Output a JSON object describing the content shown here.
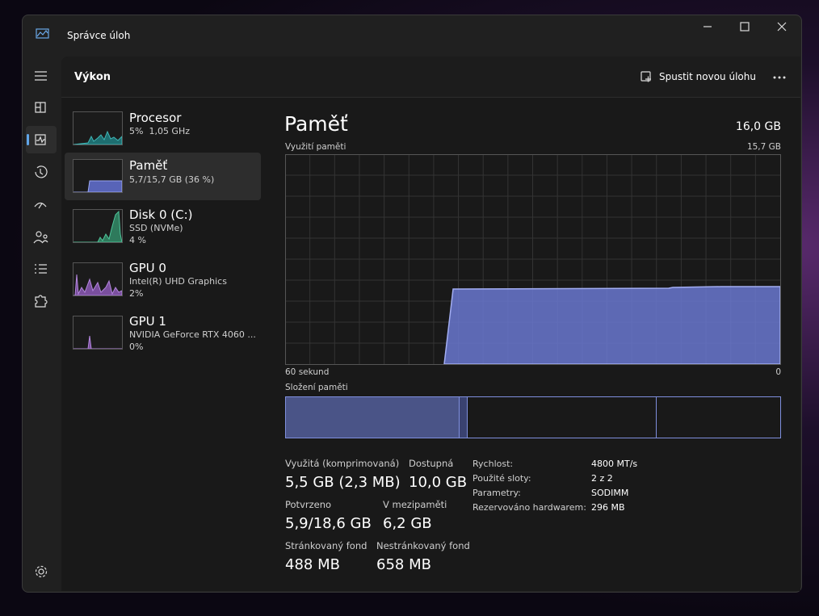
{
  "window": {
    "title": "Správce úloh"
  },
  "header": {
    "title": "Výkon",
    "action": "Spustit novou úlohu"
  },
  "devices": [
    {
      "name": "Procesor",
      "detail": "5%  1,05 GHz"
    },
    {
      "name": "Paměť",
      "detail": "5,7/15,7 GB (36 %)"
    },
    {
      "name": "Disk 0 (C:)",
      "detail": "SSD (NVMe)",
      "detail2": "4 %"
    },
    {
      "name": "GPU 0",
      "detail": "Intel(R) UHD Graphics",
      "detail2": "2%"
    },
    {
      "name": "GPU 1",
      "detail": "NVIDIA GeForce RTX 4060 ...",
      "detail2": "0%"
    }
  ],
  "panel": {
    "title": "Paměť",
    "total": "16,0 GB",
    "graph_label": "Využití paměti",
    "graph_max": "15,7 GB",
    "time_left": "60 sekund",
    "time_right": "0",
    "composition_label": "Složení paměti"
  },
  "stats": [
    {
      "label": "Využitá (komprimovaná)",
      "value": "5,5 GB (2,3 MB)"
    },
    {
      "label": "Dostupná",
      "value": "10,0 GB"
    },
    {
      "label": "Potvrzeno",
      "value": "5,9/18,6 GB"
    },
    {
      "label": "V mezipaměti",
      "value": "6,2 GB"
    },
    {
      "label": "Stránkovaný fond",
      "value": "488 MB"
    },
    {
      "label": "Nestránkovaný fond",
      "value": "658 MB"
    }
  ],
  "details": [
    {
      "label": "Rychlost:",
      "value": "4800 MT/s"
    },
    {
      "label": "Použité sloty:",
      "value": "2 z 2"
    },
    {
      "label": "Parametry:",
      "value": "SODIMM"
    },
    {
      "label": "Rezervováno hardwarem:",
      "value": "296 MB"
    }
  ]
}
